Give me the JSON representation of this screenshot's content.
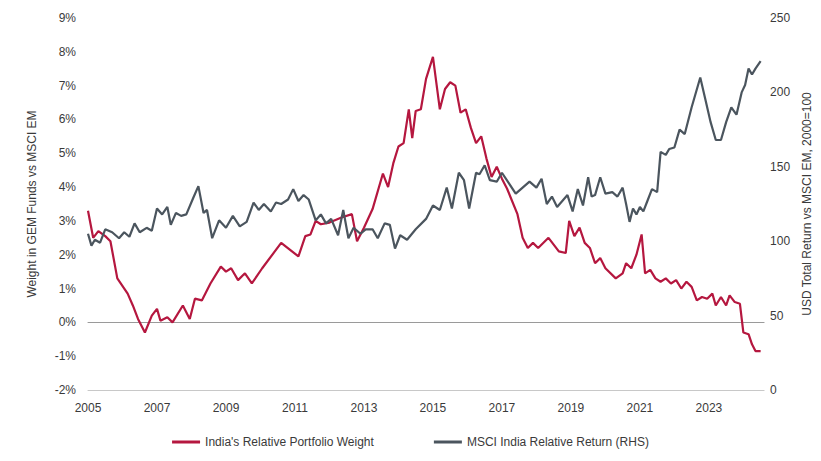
{
  "chart_data": {
    "type": "line",
    "ylabel": "Weight in GEM Funds vs MSCI EM",
    "y2label": "USD Total Return vs MSCI EM, 2000=100",
    "xlim": [
      2005,
      2024.6
    ],
    "xticks": [
      2005,
      2007,
      2009,
      2011,
      2013,
      2015,
      2017,
      2019,
      2021,
      2023
    ],
    "ylim": [
      -2,
      9
    ],
    "yticks": [
      {
        "value": -2,
        "label": "-2%"
      },
      {
        "value": -1,
        "label": "-1%"
      },
      {
        "value": 0,
        "label": "0%"
      },
      {
        "value": 1,
        "label": "1%"
      },
      {
        "value": 2,
        "label": "2%"
      },
      {
        "value": 3,
        "label": "3%"
      },
      {
        "value": 4,
        "label": "4%"
      },
      {
        "value": 5,
        "label": "5%"
      },
      {
        "value": 6,
        "label": "6%"
      },
      {
        "value": 7,
        "label": "7%"
      },
      {
        "value": 8,
        "label": "8%"
      },
      {
        "value": 9,
        "label": "9%"
      }
    ],
    "y2lim": [
      0,
      250
    ],
    "y2ticks": [
      0,
      50,
      100,
      150,
      200,
      250
    ],
    "grid": false,
    "legend": "bottom",
    "series": [
      {
        "name": "India's Relative Portfolio Weight",
        "color": "#b5173f",
        "x": [
          2005,
          2005.15,
          2005.3,
          2005.5,
          2005.65,
          2005.85,
          2006.15,
          2006.3,
          2006.45,
          2006.65,
          2006.85,
          2007,
          2007.1,
          2007.3,
          2007.45,
          2007.75,
          2007.95,
          2008.1,
          2008.3,
          2008.55,
          2008.85,
          2009,
          2009.15,
          2009.35,
          2009.55,
          2009.75,
          2010.05,
          2010.6,
          2011.1,
          2011.3,
          2011.45,
          2011.6,
          2011.75,
          2012,
          2012.35,
          2012.65,
          2012.8,
          2013,
          2013.25,
          2013.55,
          2013.7,
          2013.85,
          2014,
          2014.15,
          2014.3,
          2014.4,
          2014.5,
          2014.65,
          2014.8,
          2015,
          2015.2,
          2015.35,
          2015.5,
          2015.65,
          2015.8,
          2015.95,
          2016.1,
          2016.25,
          2016.4,
          2016.55,
          2016.7,
          2016.85,
          2017,
          2017.15,
          2017.45,
          2017.6,
          2017.75,
          2017.9,
          2018.05,
          2018.35,
          2018.65,
          2018.85,
          2018.95,
          2019.1,
          2019.25,
          2019.4,
          2019.55,
          2019.7,
          2019.85,
          2020,
          2020.3,
          2020.5,
          2020.6,
          2020.75,
          2020.9,
          2021.05,
          2021.15,
          2021.3,
          2021.45,
          2021.6,
          2021.75,
          2021.9,
          2022.05,
          2022.2,
          2022.35,
          2022.5,
          2022.65,
          2022.8,
          2022.95,
          2023.1,
          2023.2,
          2023.35,
          2023.5,
          2023.6,
          2023.75,
          2023.9,
          2024,
          2024.15,
          2024.25,
          2024.35,
          2024.5
        ],
        "values": [
          3.3,
          2.5,
          2.7,
          2.55,
          2.4,
          1.3,
          0.85,
          0.5,
          0.1,
          -0.3,
          0.2,
          0.4,
          0.05,
          0.15,
          0.0,
          0.5,
          0.1,
          0.7,
          0.65,
          1.15,
          1.65,
          1.5,
          1.6,
          1.25,
          1.45,
          1.15,
          1.6,
          2.35,
          1.95,
          2.55,
          2.6,
          3.0,
          2.9,
          2.95,
          3.1,
          3.2,
          2.4,
          2.8,
          3.35,
          4.4,
          4.0,
          4.7,
          5.2,
          5.3,
          6.3,
          5.45,
          6.25,
          6.3,
          7.2,
          7.85,
          6.3,
          6.9,
          7.1,
          7.0,
          6.2,
          6.3,
          5.75,
          5.3,
          5.5,
          4.85,
          4.3,
          4.6,
          4.25,
          3.95,
          3.2,
          2.5,
          2.2,
          2.35,
          2.2,
          2.5,
          2.1,
          2.05,
          3.0,
          2.55,
          2.8,
          2.35,
          2.2,
          1.75,
          1.9,
          1.6,
          1.3,
          1.45,
          1.75,
          1.6,
          2.0,
          2.6,
          1.45,
          1.55,
          1.3,
          1.2,
          1.3,
          1.15,
          1.25,
          1.0,
          1.2,
          1.05,
          0.65,
          0.75,
          0.7,
          0.85,
          0.5,
          0.75,
          0.5,
          0.8,
          0.6,
          0.55,
          -0.3,
          -0.35,
          -0.65,
          -0.85,
          -0.85
        ]
      },
      {
        "name": "MSCI India Relative Return (RHS)",
        "color": "#4b555e",
        "axis": "y2",
        "x": [
          2005,
          2005.1,
          2005.2,
          2005.35,
          2005.5,
          2005.7,
          2005.9,
          2006.05,
          2006.2,
          2006.35,
          2006.5,
          2006.7,
          2006.85,
          2007,
          2007.15,
          2007.3,
          2007.4,
          2007.55,
          2007.7,
          2007.85,
          2008.05,
          2008.2,
          2008.35,
          2008.45,
          2008.6,
          2008.8,
          2009,
          2009.2,
          2009.4,
          2009.6,
          2009.8,
          2009.95,
          2010.1,
          2010.3,
          2010.45,
          2010.6,
          2010.8,
          2010.95,
          2011.1,
          2011.25,
          2011.4,
          2011.6,
          2011.75,
          2011.9,
          2012.05,
          2012.25,
          2012.4,
          2012.55,
          2012.7,
          2012.9,
          2013.05,
          2013.25,
          2013.4,
          2013.6,
          2013.75,
          2013.9,
          2014.05,
          2014.25,
          2014.5,
          2014.8,
          2015,
          2015.2,
          2015.4,
          2015.55,
          2015.75,
          2015.9,
          2016.05,
          2016.25,
          2016.35,
          2016.5,
          2016.65,
          2016.85,
          2017,
          2017.2,
          2017.4,
          2017.6,
          2017.8,
          2018,
          2018.15,
          2018.3,
          2018.45,
          2018.6,
          2018.75,
          2018.9,
          2019.05,
          2019.2,
          2019.35,
          2019.5,
          2019.6,
          2019.7,
          2019.85,
          2020,
          2020.2,
          2020.35,
          2020.5,
          2020.6,
          2020.7,
          2020.8,
          2020.9,
          2021,
          2021.1,
          2021.2,
          2021.35,
          2021.5,
          2021.6,
          2021.75,
          2021.85,
          2022,
          2022.15,
          2022.3,
          2022.5,
          2022.75,
          2022.9,
          2023.05,
          2023.2,
          2023.35,
          2023.5,
          2023.65,
          2023.8,
          2023.95,
          2024.05,
          2024.15,
          2024.25,
          2024.35,
          2024.5
        ],
        "values": [
          105,
          97,
          101,
          99,
          108,
          106,
          102,
          106,
          103,
          112,
          106,
          109,
          107,
          122,
          118,
          123,
          111,
          119,
          117,
          118,
          129,
          137,
          119,
          121,
          102,
          114,
          109,
          117,
          110,
          113,
          126,
          121,
          125,
          120,
          126,
          125,
          128,
          135,
          127,
          131,
          128,
          114,
          118,
          112,
          115,
          104,
          121,
          102,
          109,
          105,
          108,
          108,
          102,
          112,
          111,
          95,
          104,
          101,
          108,
          115,
          124,
          121,
          136,
          122,
          146,
          141,
          122,
          146,
          145,
          151,
          141,
          140,
          146,
          139,
          132,
          136,
          140,
          136,
          142,
          125,
          130,
          123,
          127,
          131,
          120,
          135,
          124,
          143,
          130,
          131,
          143,
          132,
          133,
          130,
          136,
          125,
          113,
          122,
          118,
          123,
          120,
          126,
          135,
          133,
          160,
          158,
          162,
          163,
          175,
          172,
          190,
          210,
          195,
          180,
          168,
          168,
          180,
          190,
          185,
          200,
          205,
          216,
          212,
          216,
          221
        ]
      }
    ]
  }
}
